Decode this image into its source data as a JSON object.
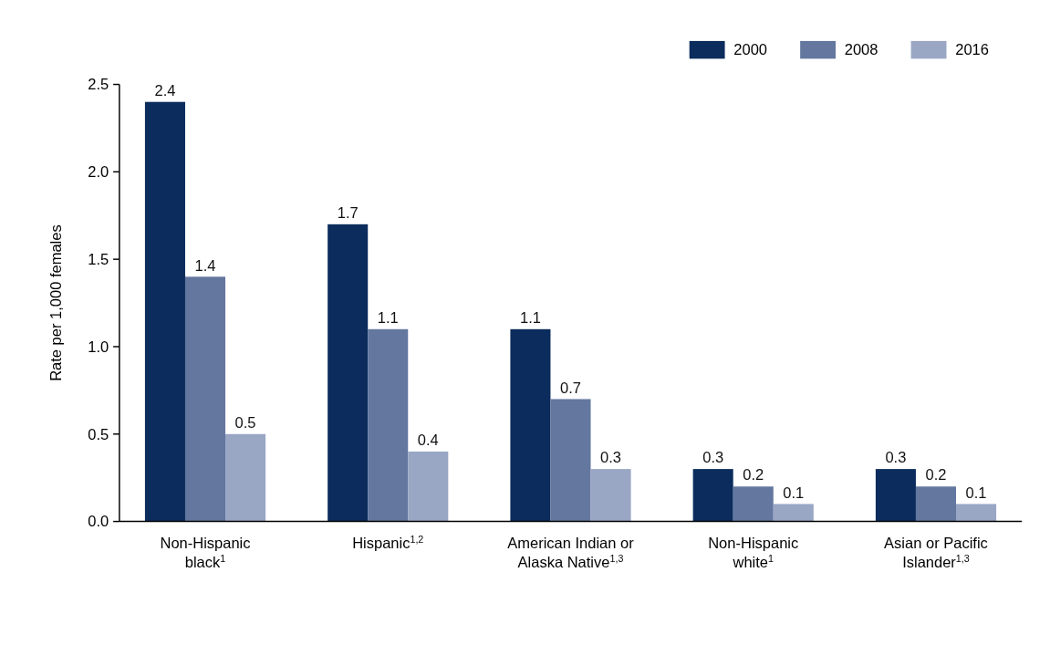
{
  "chart_data": {
    "type": "bar",
    "ylabel": "Rate per 1,000 females",
    "categories": [
      "Non-Hispanic black$^{1}$",
      "Hispanic$^{1,2}$",
      "American Indian or Alaska Native$^{1,3}$",
      "Non-Hispanic white$^{1}$",
      "Asian or Pacific Islander$^{1,3}$"
    ],
    "series": [
      {
        "name": "2000",
        "color": "#0b2c5c",
        "values": [
          2.4,
          1.7,
          1.1,
          0.3,
          0.3
        ]
      },
      {
        "name": "2008",
        "color": "#63779f",
        "values": [
          1.4,
          1.1,
          0.7,
          0.2,
          0.2
        ]
      },
      {
        "name": "2016",
        "color": "#99a6c4",
        "values": [
          0.5,
          0.4,
          0.3,
          0.1,
          0.1
        ]
      }
    ],
    "ylim": [
      0,
      2.5
    ],
    "yticks": [
      {
        "value": 0,
        "label": "0.0"
      },
      {
        "value": 0.5,
        "label": "0.5"
      },
      {
        "value": 1,
        "label": "1.0"
      },
      {
        "value": 1.5,
        "label": "1.5"
      },
      {
        "value": 2,
        "label": "2.0"
      },
      {
        "value": 2.5,
        "label": "2.5"
      }
    ],
    "data_labels": true,
    "grid": false,
    "legend": "top right"
  }
}
